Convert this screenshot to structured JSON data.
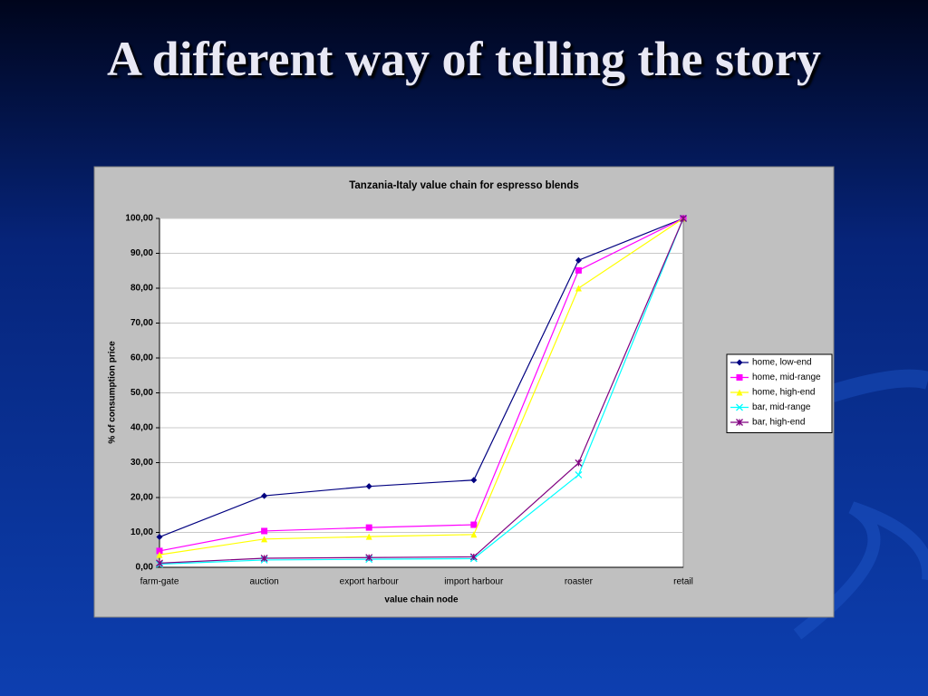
{
  "slide_title": "A different way of telling the story",
  "chart_data": {
    "type": "line",
    "title": "Tanzania-Italy value chain for espresso blends",
    "x_label": "value chain node",
    "y_label": "% of consumption price",
    "categories": [
      "farm-gate",
      "auction",
      "export harbour",
      "import harbour",
      "roaster",
      "retail"
    ],
    "series": [
      {
        "name": "home, low-end",
        "color": "#000080",
        "marker": "diamond",
        "values": [
          8.7,
          20.5,
          23.2,
          25.0,
          88.0,
          100.0
        ]
      },
      {
        "name": "home, mid-range",
        "color": "#ff00ff",
        "marker": "square",
        "values": [
          4.7,
          10.4,
          11.4,
          12.2,
          85.1,
          100.0
        ]
      },
      {
        "name": "home, high-end",
        "color": "#ffff00",
        "marker": "triangle",
        "values": [
          3.6,
          8.1,
          8.8,
          9.4,
          80.0,
          100.0
        ]
      },
      {
        "name": "bar, mid-range",
        "color": "#00ffff",
        "marker": "x",
        "values": [
          0.9,
          2.1,
          2.3,
          2.5,
          26.5,
          100.0
        ]
      },
      {
        "name": "bar, high-end",
        "color": "#800080",
        "marker": "star",
        "values": [
          1.2,
          2.6,
          2.8,
          3.0,
          29.9,
          100.0
        ]
      }
    ],
    "ylim": [
      0,
      100
    ],
    "yticks": [
      {
        "value": 0,
        "label": "0,00"
      },
      {
        "value": 10,
        "label": "10,00"
      },
      {
        "value": 20,
        "label": "20,00"
      },
      {
        "value": 30,
        "label": "30,00"
      },
      {
        "value": 40,
        "label": "40,00"
      },
      {
        "value": 50,
        "label": "50,00"
      },
      {
        "value": 60,
        "label": "60,00"
      },
      {
        "value": 70,
        "label": "70,00"
      },
      {
        "value": 80,
        "label": "80,00"
      },
      {
        "value": 90,
        "label": "90,00"
      },
      {
        "value": 100,
        "label": "100,00"
      }
    ],
    "grid": true,
    "legend": "right"
  }
}
